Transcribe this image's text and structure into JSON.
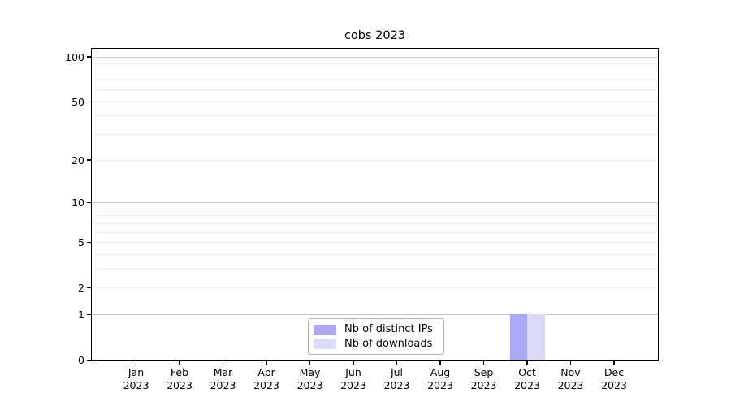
{
  "chart_data": {
    "type": "bar",
    "title": "cobs 2023",
    "categories": [
      "Jan",
      "Feb",
      "Mar",
      "Apr",
      "May",
      "Jun",
      "Jul",
      "Aug",
      "Sep",
      "Oct",
      "Nov",
      "Dec"
    ],
    "x_year_label": "2023",
    "series": [
      {
        "name": "Nb of distinct IPs",
        "color": "#a9a9f5",
        "values": [
          0,
          0,
          0,
          0,
          0,
          0,
          0,
          0,
          0,
          1,
          0,
          0
        ]
      },
      {
        "name": "Nb of downloads",
        "color": "#dbdbf9",
        "values": [
          0,
          0,
          0,
          0,
          0,
          0,
          0,
          0,
          0,
          1,
          0,
          0
        ]
      }
    ],
    "y_axis": {
      "scale": "log1p",
      "tick_values": [
        0,
        1,
        2,
        5,
        10,
        20,
        50,
        100
      ],
      "tick_labels": [
        "0",
        "1",
        "2",
        "5",
        "10",
        "20",
        "50",
        "100"
      ],
      "major_grid_values": [
        1,
        10,
        100
      ],
      "minor_grid_values": [
        2,
        3,
        4,
        5,
        6,
        7,
        8,
        9,
        20,
        30,
        40,
        50,
        60,
        70,
        80,
        90
      ],
      "ylim": [
        0,
        113
      ]
    },
    "xlabel": "",
    "ylabel": "",
    "grid": true,
    "legend_position": "bottom-center-inside"
  },
  "colors": {
    "major_grid": "#c9c9c9",
    "minor_grid": "#ececec",
    "axis": "#000000",
    "legend_border": "#b3b3b3",
    "background": "#ffffff"
  }
}
